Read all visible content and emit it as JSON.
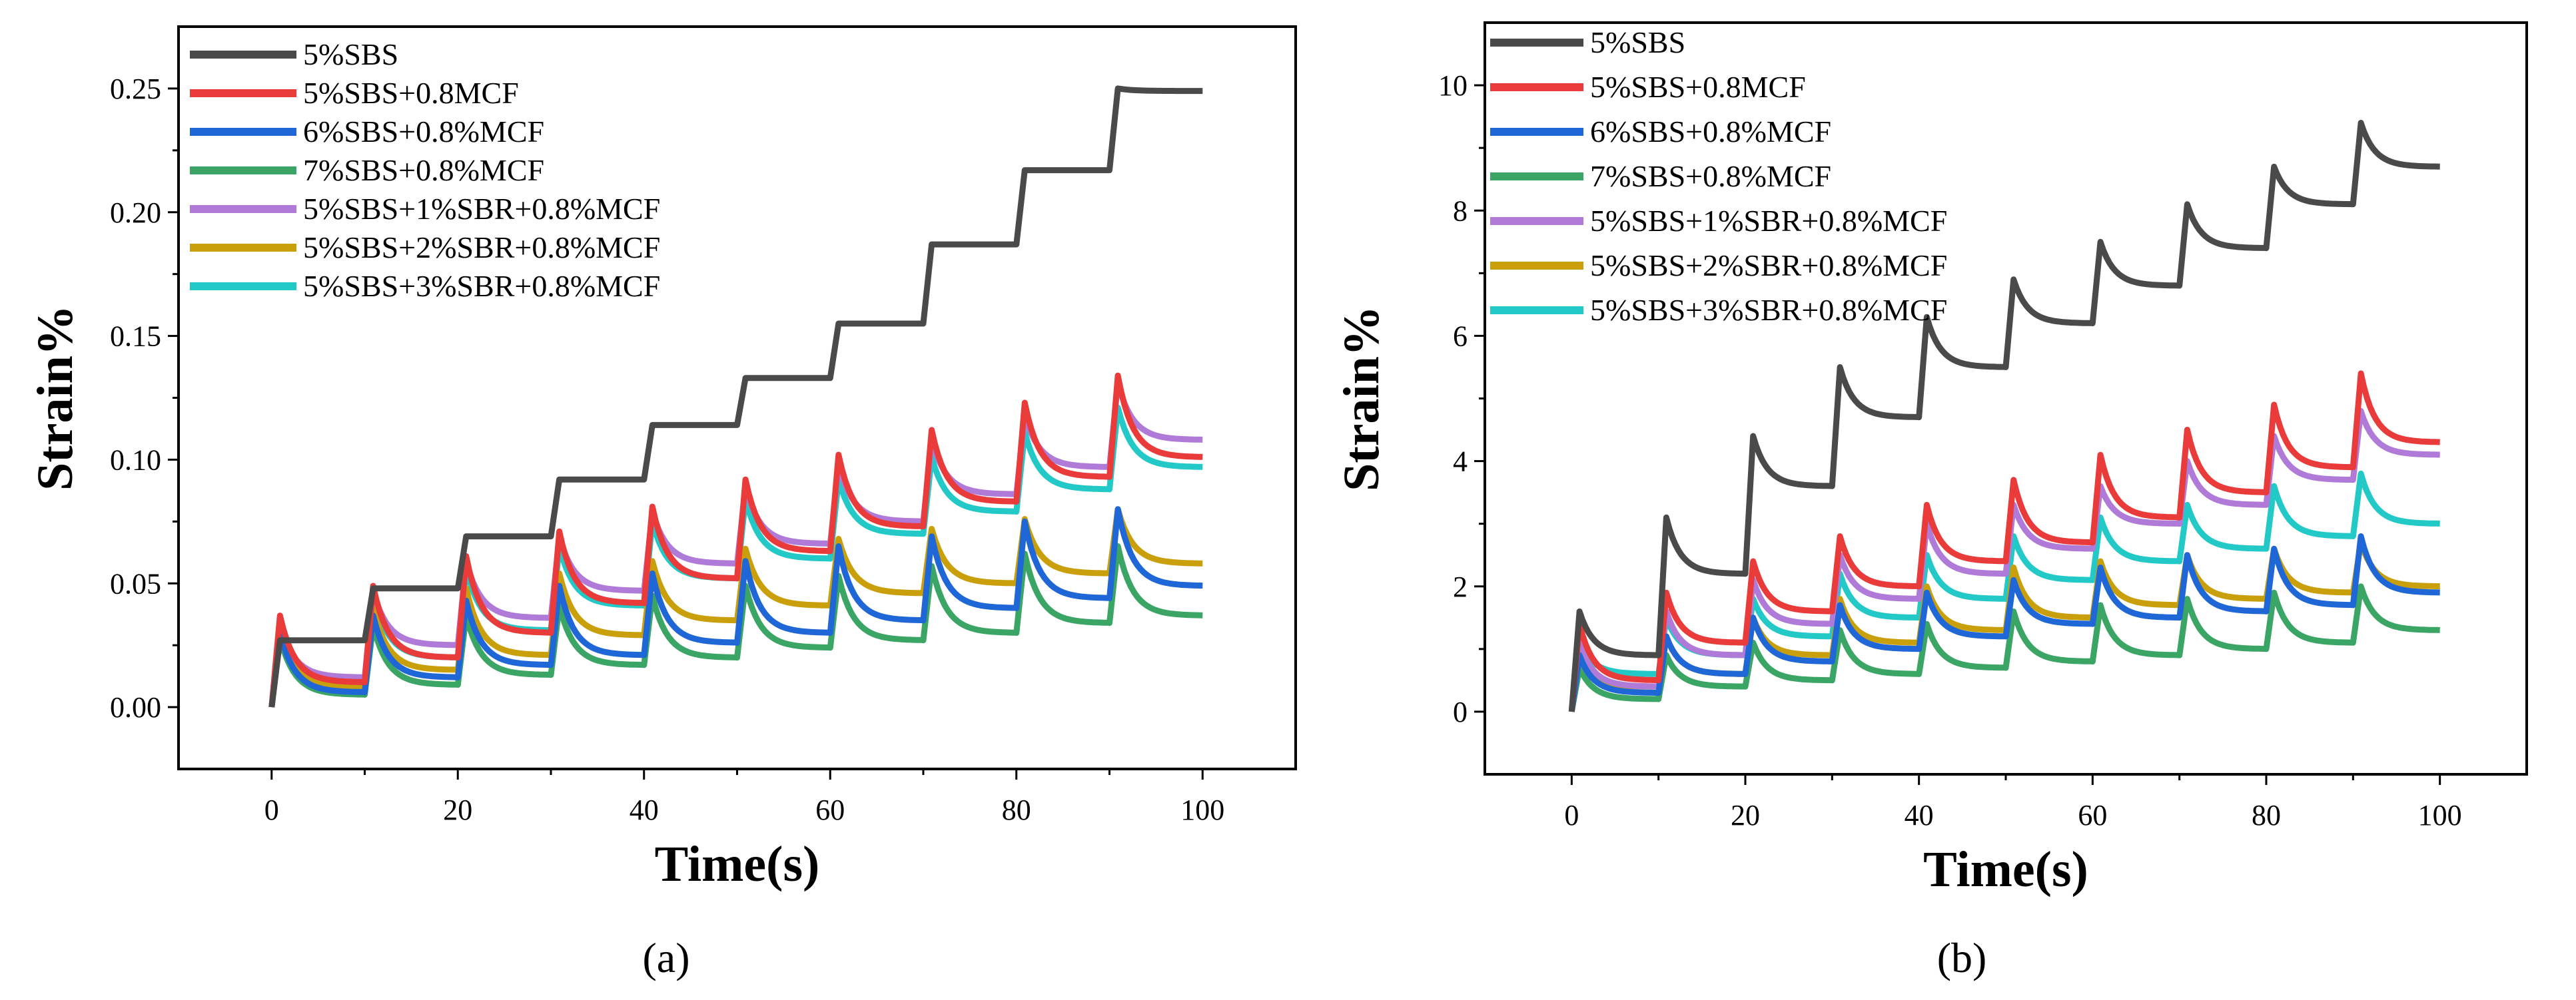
{
  "colors": {
    "s5sbs": "#4a4a4a",
    "s5sbs_mcf": "#ea3b3b",
    "s6sbs_mcf": "#1f66d6",
    "s7sbs_mcf": "#3aa564",
    "s5sbs_1sbr": "#b07ad8",
    "s5sbs_2sbr": "#c9a00c",
    "s5sbs_3sbr": "#22c9c6"
  },
  "chart_data": [
    {
      "type": "line",
      "caption": "(a)",
      "xlabel": "Time(s)",
      "ylabel": "Strain%",
      "xlim": [
        -10,
        110
      ],
      "ylim": [
        -0.025,
        0.275
      ],
      "xticks": [
        0,
        20,
        40,
        60,
        80,
        100
      ],
      "xtick_labels": [
        "0",
        "20",
        "40",
        "60",
        "80",
        "100"
      ],
      "yticks": [
        0,
        0.05,
        0.1,
        0.15,
        0.2,
        0.25
      ],
      "ytick_labels": [
        "0.00",
        "0.05",
        "0.10",
        "0.15",
        "0.20",
        "0.25"
      ],
      "legend_position": "top-left",
      "series": [
        {
          "name": "5%SBS",
          "color_key": "s5sbs",
          "mode": "step",
          "plateaus": [
            0.027,
            0.048,
            0.069,
            0.092,
            0.114,
            0.133,
            0.155,
            0.187,
            0.217,
            0.249
          ],
          "peaks": [
            0.027,
            0.048,
            0.069,
            0.092,
            0.114,
            0.133,
            0.155,
            0.187,
            0.217,
            0.25
          ]
        },
        {
          "name": "5%SBS+0.8MCF",
          "color_key": "s5sbs_mcf",
          "mode": "creep",
          "peaks": [
            0.037,
            0.049,
            0.061,
            0.071,
            0.081,
            0.092,
            0.102,
            0.112,
            0.123,
            0.134
          ],
          "ends": [
            0.01,
            0.02,
            0.03,
            0.042,
            0.052,
            0.063,
            0.073,
            0.083,
            0.093,
            0.101
          ]
        },
        {
          "name": "6%SBS+0.8%MCF",
          "color_key": "s6sbs_mcf",
          "mode": "creep",
          "peaks": [
            0.03,
            0.037,
            0.043,
            0.049,
            0.054,
            0.059,
            0.065,
            0.069,
            0.075,
            0.08
          ],
          "ends": [
            0.006,
            0.012,
            0.017,
            0.021,
            0.026,
            0.03,
            0.035,
            0.04,
            0.044,
            0.049
          ]
        },
        {
          "name": "7%SBS+0.8%MCF",
          "color_key": "s7sbs_mcf",
          "mode": "creep",
          "peaks": [
            0.028,
            0.033,
            0.037,
            0.041,
            0.045,
            0.049,
            0.053,
            0.057,
            0.062,
            0.065
          ],
          "ends": [
            0.005,
            0.009,
            0.013,
            0.017,
            0.02,
            0.024,
            0.027,
            0.03,
            0.034,
            0.037
          ]
        },
        {
          "name": "5%SBS+1%SBR+0.8%MCF",
          "color_key": "s5sbs_1sbr",
          "mode": "creep",
          "peaks": [
            0.033,
            0.047,
            0.059,
            0.069,
            0.079,
            0.089,
            0.098,
            0.108,
            0.118,
            0.131
          ],
          "ends": [
            0.012,
            0.025,
            0.036,
            0.047,
            0.058,
            0.066,
            0.075,
            0.086,
            0.097,
            0.108
          ]
        },
        {
          "name": "5%SBS+2%SBR+0.8%MCF",
          "color_key": "s5sbs_2sbr",
          "mode": "creep",
          "peaks": [
            0.03,
            0.04,
            0.048,
            0.054,
            0.059,
            0.064,
            0.068,
            0.072,
            0.076,
            0.08
          ],
          "ends": [
            0.008,
            0.015,
            0.021,
            0.029,
            0.035,
            0.041,
            0.046,
            0.05,
            0.054,
            0.058
          ]
        },
        {
          "name": "5%SBS+3%SBR+0.8%MCF",
          "color_key": "s5sbs_3sbr",
          "mode": "creep",
          "peaks": [
            0.035,
            0.046,
            0.056,
            0.065,
            0.075,
            0.084,
            0.092,
            0.101,
            0.111,
            0.121
          ],
          "ends": [
            0.01,
            0.02,
            0.031,
            0.041,
            0.052,
            0.06,
            0.07,
            0.079,
            0.088,
            0.097
          ]
        }
      ]
    },
    {
      "type": "line",
      "caption": "(b)",
      "xlabel": "Time(s)",
      "ylabel": "Strain%",
      "xlim": [
        -10,
        110
      ],
      "ylim": [
        -1,
        11
      ],
      "xticks": [
        0,
        20,
        40,
        60,
        80,
        100
      ],
      "xtick_labels": [
        "0",
        "20",
        "40",
        "60",
        "80",
        "100"
      ],
      "yticks": [
        0,
        2,
        4,
        6,
        8,
        10
      ],
      "ytick_labels": [
        "0",
        "2",
        "4",
        "6",
        "8",
        "10"
      ],
      "legend_position": "top-left",
      "series": [
        {
          "name": "5%SBS",
          "color_key": "s5sbs",
          "mode": "creep",
          "peaks": [
            1.6,
            3.1,
            4.4,
            5.5,
            6.3,
            6.9,
            7.5,
            8.1,
            8.7,
            9.4
          ],
          "ends": [
            0.9,
            2.2,
            3.6,
            4.7,
            5.5,
            6.2,
            6.8,
            7.4,
            8.1,
            8.7
          ]
        },
        {
          "name": "5%SBS+0.8MCF",
          "color_key": "s5sbs_mcf",
          "mode": "creep",
          "peaks": [
            1.4,
            1.9,
            2.4,
            2.8,
            3.3,
            3.7,
            4.1,
            4.5,
            4.9,
            5.4
          ],
          "ends": [
            0.5,
            1.1,
            1.6,
            2.0,
            2.4,
            2.7,
            3.1,
            3.5,
            3.9,
            4.3
          ]
        },
        {
          "name": "6%SBS+0.8%MCF",
          "color_key": "s6sbs_mcf",
          "mode": "creep",
          "peaks": [
            0.9,
            1.2,
            1.5,
            1.7,
            1.9,
            2.1,
            2.3,
            2.5,
            2.6,
            2.8
          ],
          "ends": [
            0.3,
            0.6,
            0.8,
            1.0,
            1.2,
            1.4,
            1.5,
            1.6,
            1.7,
            1.9
          ]
        },
        {
          "name": "7%SBS+0.8%MCF",
          "color_key": "s7sbs_mcf",
          "mode": "creep",
          "peaks": [
            0.7,
            0.9,
            1.1,
            1.3,
            1.4,
            1.6,
            1.7,
            1.8,
            1.9,
            2.0
          ],
          "ends": [
            0.2,
            0.4,
            0.5,
            0.6,
            0.7,
            0.8,
            0.9,
            1.0,
            1.1,
            1.3
          ]
        },
        {
          "name": "5%SBS+1%SBR+0.8%MCF",
          "color_key": "s5sbs_1sbr",
          "mode": "creep",
          "peaks": [
            1.1,
            1.6,
            2.1,
            2.5,
            3.0,
            3.3,
            3.6,
            4.0,
            4.4,
            4.8
          ],
          "ends": [
            0.4,
            0.9,
            1.4,
            1.8,
            2.2,
            2.6,
            3.0,
            3.3,
            3.7,
            4.1
          ]
        },
        {
          "name": "5%SBS+2%SBR+0.8%MCF",
          "color_key": "s5sbs_2sbr",
          "mode": "creep",
          "peaks": [
            0.8,
            1.2,
            1.5,
            1.8,
            2.0,
            2.3,
            2.4,
            2.5,
            2.6,
            2.7
          ],
          "ends": [
            0.4,
            0.6,
            0.9,
            1.1,
            1.3,
            1.5,
            1.7,
            1.8,
            1.9,
            2.0
          ]
        },
        {
          "name": "5%SBS+3%SBR+0.8%MCF",
          "color_key": "s5sbs_3sbr",
          "mode": "creep",
          "peaks": [
            1.1,
            1.5,
            1.8,
            2.2,
            2.5,
            2.8,
            3.1,
            3.3,
            3.6,
            3.8
          ],
          "ends": [
            0.6,
            0.9,
            1.2,
            1.5,
            1.8,
            2.1,
            2.4,
            2.6,
            2.8,
            3.0
          ]
        }
      ]
    }
  ]
}
